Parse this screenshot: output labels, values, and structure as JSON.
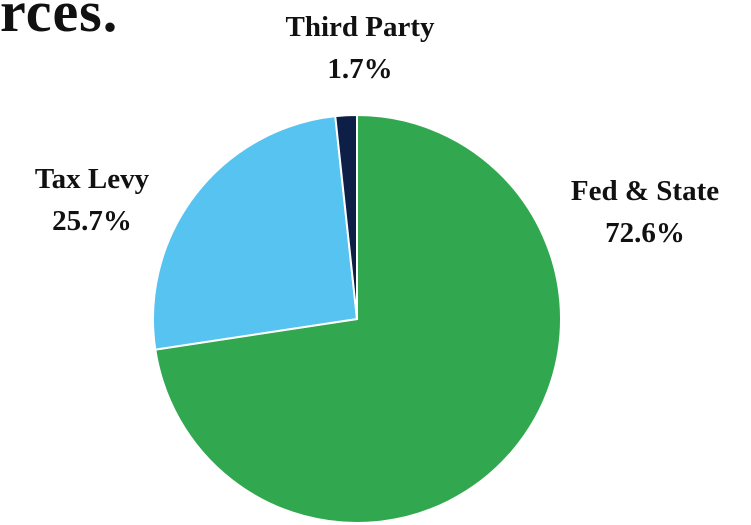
{
  "title_fragment": "rces.",
  "chart_data": {
    "type": "pie",
    "slices": [
      {
        "label": "Fed & State",
        "display": "72.6%",
        "value": 72.6,
        "color": "#31a84f"
      },
      {
        "label": "Tax Levy",
        "display": "25.7%",
        "value": 25.7,
        "color": "#56c3f1"
      },
      {
        "label": "Third Party",
        "display": "1.7%",
        "value": 1.7,
        "color": "#0d1f47"
      }
    ]
  }
}
